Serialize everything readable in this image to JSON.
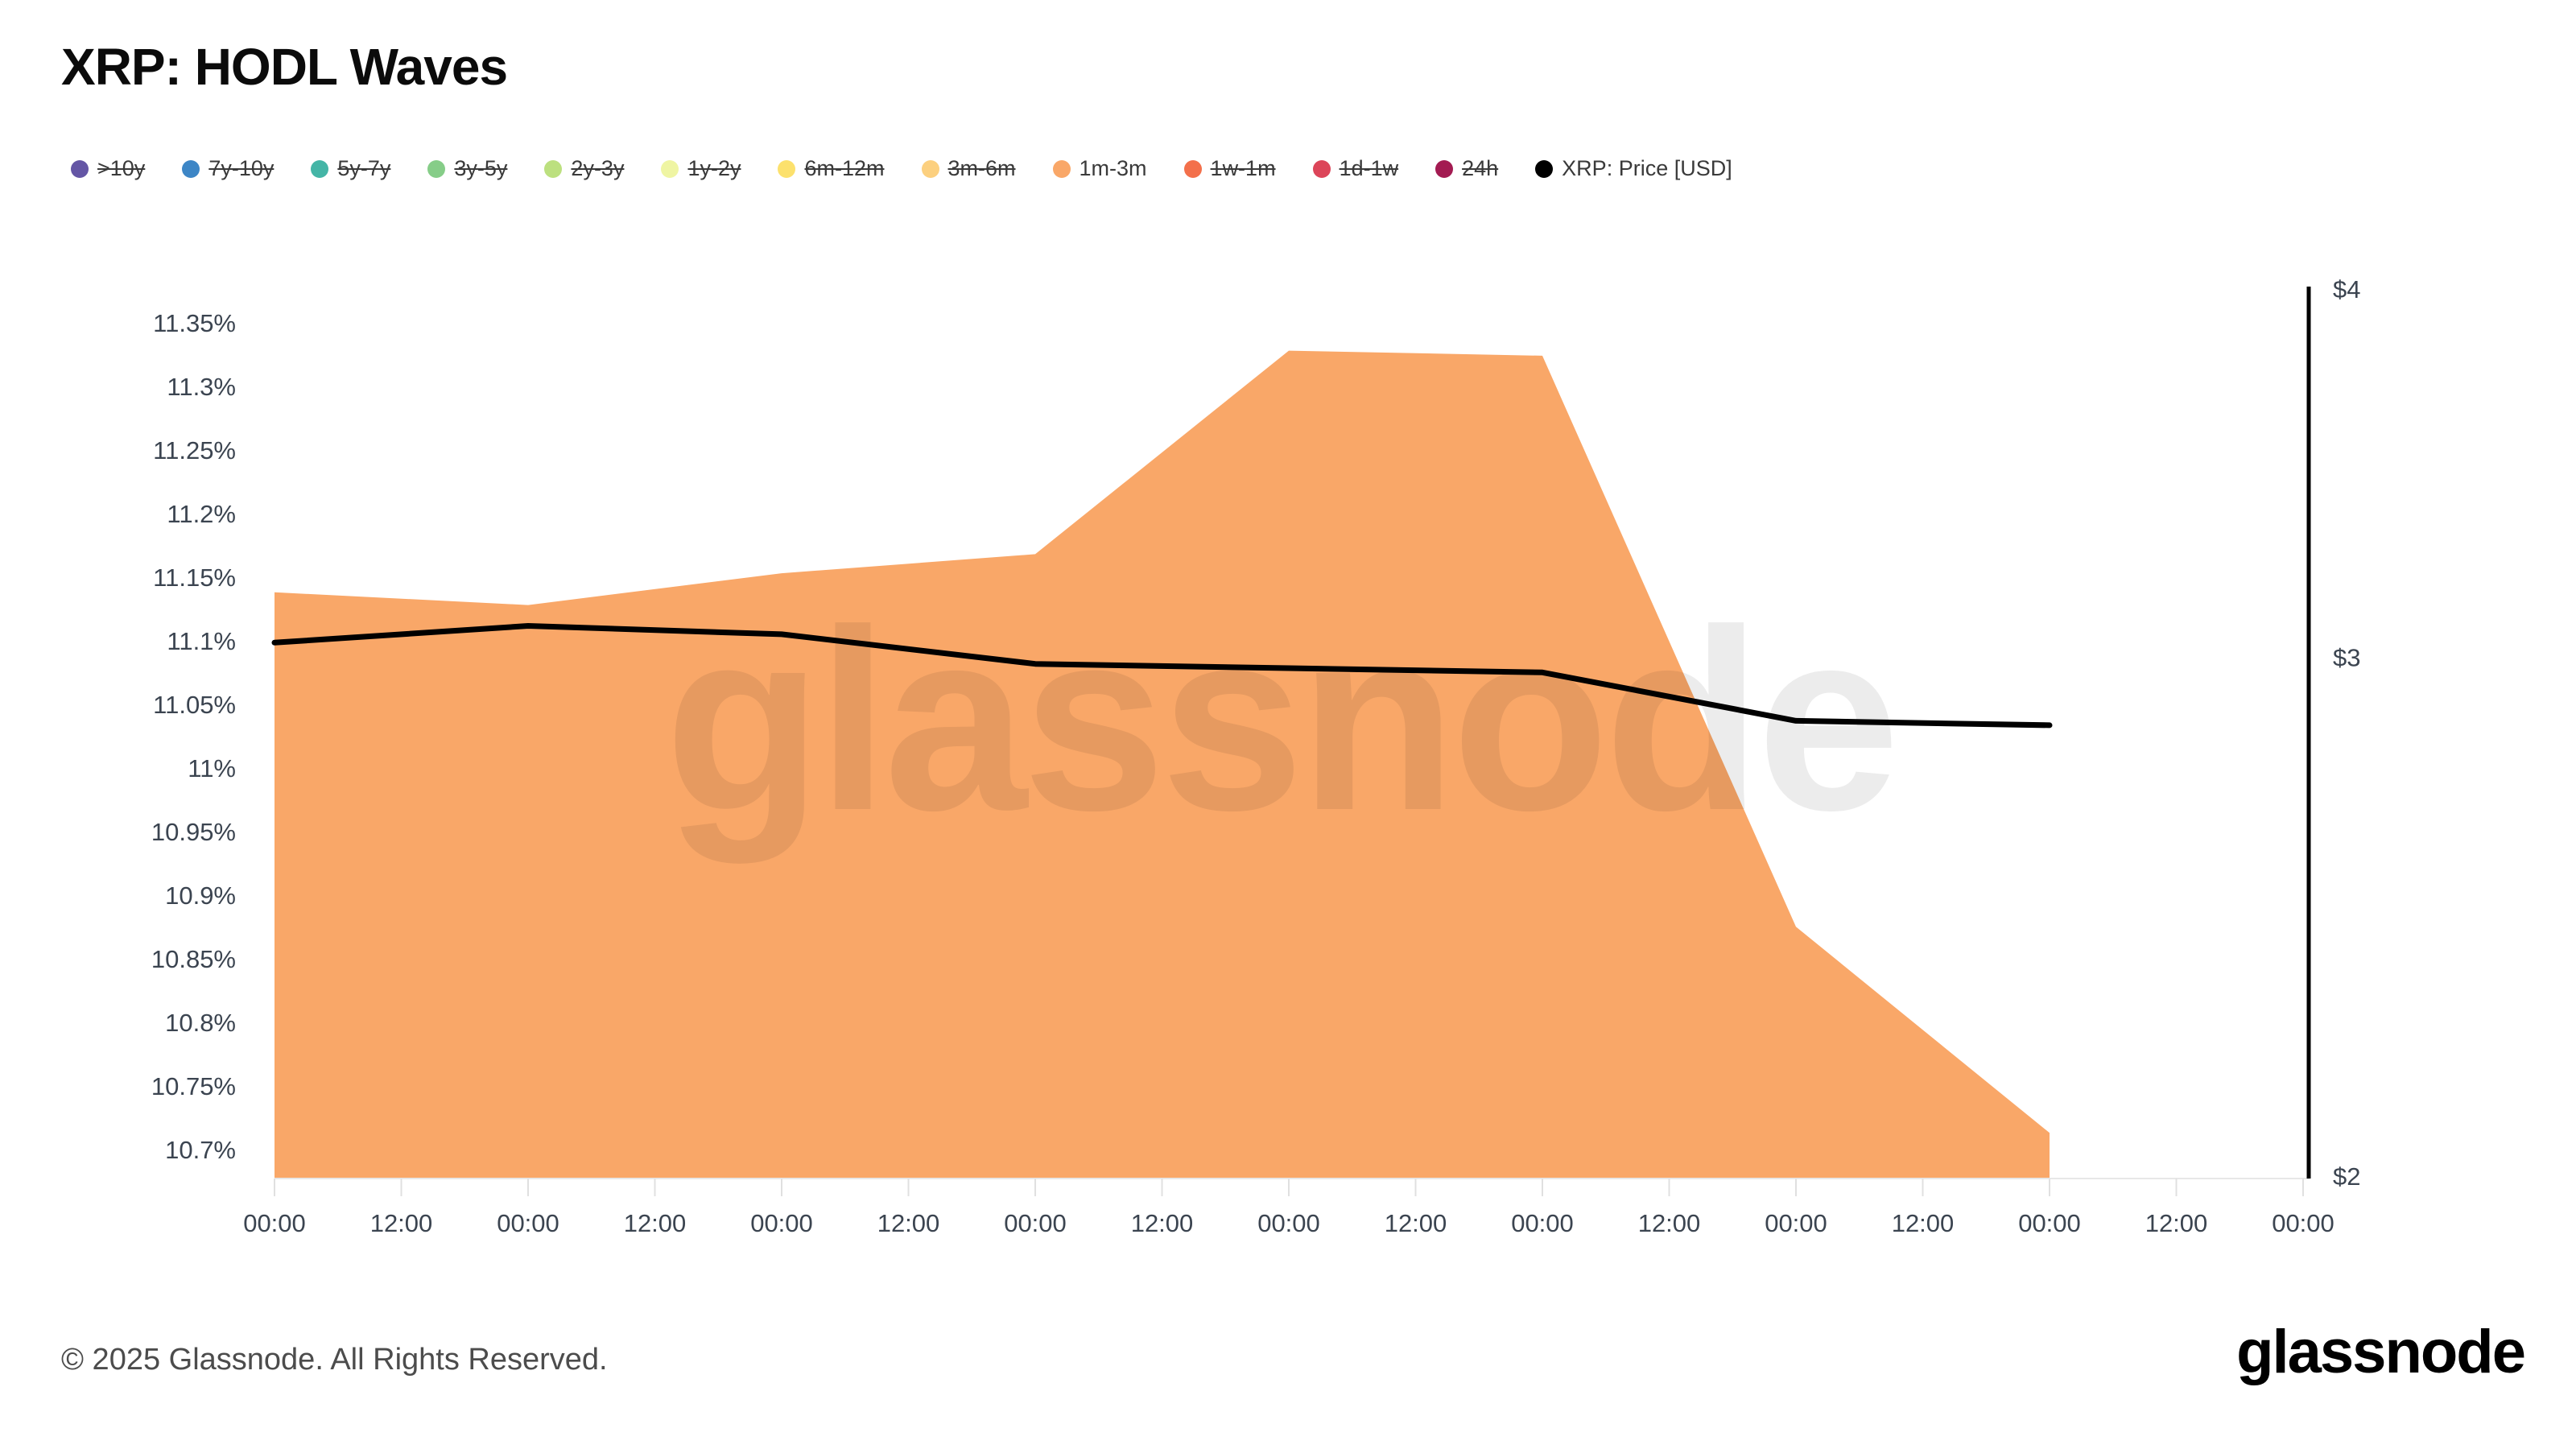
{
  "title": "XRP: HODL Waves",
  "watermark": "glassnode",
  "footer": {
    "copyright": "© 2025 Glassnode. All Rights Reserved.",
    "brand": "glassnode"
  },
  "colors": {
    "area": "#f9a768",
    "price_line": "#000000",
    "axis_text": "#3b4450",
    "grid": "#e7e7e7",
    "right_axis_line": "#000000"
  },
  "legend": {
    "items": [
      {
        "label": ">10y",
        "color": "#6456a5",
        "active": false
      },
      {
        "label": "7y-10y",
        "color": "#3d86c6",
        "active": false
      },
      {
        "label": "5y-7y",
        "color": "#44b5a6",
        "active": false
      },
      {
        "label": "3y-5y",
        "color": "#86cd88",
        "active": false
      },
      {
        "label": "2y-3y",
        "color": "#bce07f",
        "active": false
      },
      {
        "label": "1y-2y",
        "color": "#eff5a3",
        "active": false
      },
      {
        "label": "6m-12m",
        "color": "#fce16d",
        "active": false
      },
      {
        "label": "3m-6m",
        "color": "#fcd07f",
        "active": false
      },
      {
        "label": "1m-3m",
        "color": "#f9a768",
        "active": true
      },
      {
        "label": "1w-1m",
        "color": "#f3704b",
        "active": false
      },
      {
        "label": "1d-1w",
        "color": "#dc4559",
        "active": false
      },
      {
        "label": "24h",
        "color": "#a31b52",
        "active": false
      },
      {
        "label": "XRP: Price [USD]",
        "color": "#000000",
        "active": true
      }
    ]
  },
  "chart_data": {
    "type": "area",
    "title": "XRP: HODL Waves",
    "grid": false,
    "legend_position": "top",
    "x_tick_labels": [
      "00:00",
      "12:00",
      "00:00",
      "12:00",
      "00:00",
      "12:00",
      "00:00",
      "12:00",
      "00:00",
      "12:00",
      "00:00",
      "12:00",
      "00:00",
      "12:00",
      "00:00",
      "12:00",
      "00:00"
    ],
    "x_note": "ticks every 12 hours across 8 days; series data points daily at 00:00, series end on day 7",
    "left_axis": {
      "tick_labels": [
        "11.35%",
        "11.3%",
        "11.25%",
        "11.2%",
        "11.15%",
        "11.1%",
        "11.05%",
        "11%",
        "10.95%",
        "10.9%",
        "10.85%",
        "10.8%",
        "10.75%",
        "10.7%"
      ],
      "ylim": [
        10.679,
        11.377
      ],
      "unit": "%"
    },
    "right_axis": {
      "tick_labels": [
        "$4",
        "$3",
        "$2"
      ],
      "ylim": [
        2,
        4
      ],
      "scale": "log",
      "unit": "USD"
    },
    "series": [
      {
        "name": "1m-3m",
        "type": "area",
        "axis": "left",
        "color": "#f9a768",
        "x_days": [
          0,
          1,
          2,
          3,
          4,
          5,
          6,
          7
        ],
        "values": [
          11.14,
          11.13,
          11.155,
          11.17,
          11.33,
          11.326,
          10.877,
          10.715
        ]
      },
      {
        "name": "XRP: Price [USD]",
        "type": "line",
        "axis": "right",
        "color": "#000000",
        "x_days": [
          0,
          1,
          2,
          3,
          4,
          5,
          6,
          7
        ],
        "values": [
          3.04,
          3.08,
          3.06,
          2.99,
          2.98,
          2.97,
          2.86,
          2.85
        ]
      }
    ]
  }
}
